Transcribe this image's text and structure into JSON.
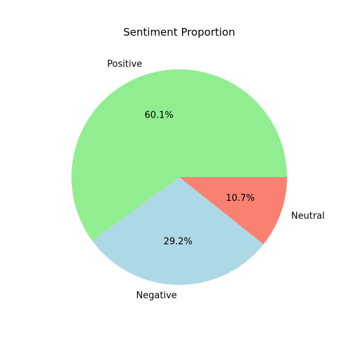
{
  "chart_data": {
    "type": "pie",
    "title": "Sentiment Proportion",
    "categories": [
      "Positive",
      "Negative",
      "Neutral"
    ],
    "values": [
      60.1,
      29.2,
      10.7
    ],
    "labels": [
      "60.1%",
      "29.2%",
      "10.7%"
    ],
    "colors": [
      "#90ee90",
      "#add8e6",
      "#fa8072"
    ],
    "start_angle_deg": 0,
    "direction": "counterclockwise"
  }
}
